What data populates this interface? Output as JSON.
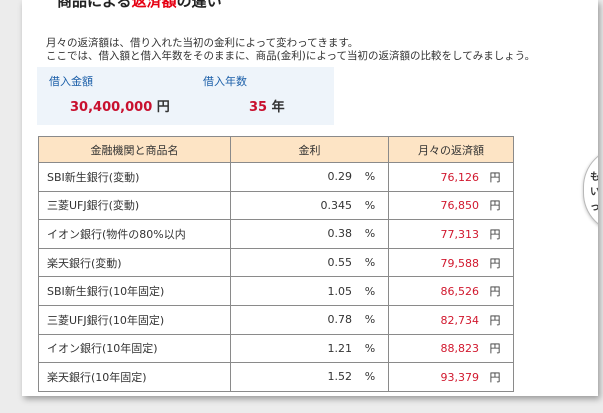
{
  "header": {
    "title_part1": "商品による",
    "title_red": "返済額",
    "title_part2": "の違い"
  },
  "intro": {
    "line1": "月々の返済額は、借り入れた当初の金利によって変わってきます。",
    "line2": "ここでは、借入額と借入年数をそのままに、商品(金利)によって当初の返済額の比較をしてみましょう。"
  },
  "loan": {
    "amount_label": "借入金額",
    "amount_value": "30,400,000",
    "amount_unit": "円",
    "years_label": "借入年数",
    "years_value": "35",
    "years_unit": "年"
  },
  "table": {
    "headers": [
      "金融機関と商品名",
      "金利",
      "月々の返済額"
    ],
    "rows": [
      {
        "name": "SBI新生銀行(変動)",
        "rate": "0.29",
        "rate_unit": "%",
        "payment": "76,126",
        "payment_unit": "円"
      },
      {
        "name": "三菱UFJ銀行(変動)",
        "rate": "0.345",
        "rate_unit": "%",
        "payment": "76,850",
        "payment_unit": "円"
      },
      {
        "name": "イオン銀行(物件の80%以内",
        "rate": "0.38",
        "rate_unit": "%",
        "payment": "77,313",
        "payment_unit": "円"
      },
      {
        "name": "楽天銀行(変動)",
        "rate": "0.55",
        "rate_unit": "%",
        "payment": "79,588",
        "payment_unit": "円"
      },
      {
        "name": "SBI新生銀行(10年固定)",
        "rate": "1.05",
        "rate_unit": "%",
        "payment": "86,526",
        "payment_unit": "円"
      },
      {
        "name": "三菱UFJ銀行(10年固定)",
        "rate": "0.78",
        "rate_unit": "%",
        "payment": "82,734",
        "payment_unit": "円"
      },
      {
        "name": "イオン銀行(10年固定)",
        "rate": "1.21",
        "rate_unit": "%",
        "payment": "88,823",
        "payment_unit": "円"
      },
      {
        "name": "楽天銀行(10年固定)",
        "rate": "1.52",
        "rate_unit": "%",
        "payment": "93,379",
        "payment_unit": "円"
      }
    ]
  },
  "bubble": {
    "text": "も\nいぶ\nっ"
  },
  "colors": {
    "accent_red": "#e60012",
    "payment_red": "#d1182e",
    "label_blue": "#1a5ea8",
    "header_bg": "#fde4c5",
    "info_bg": "#eef4fa"
  }
}
